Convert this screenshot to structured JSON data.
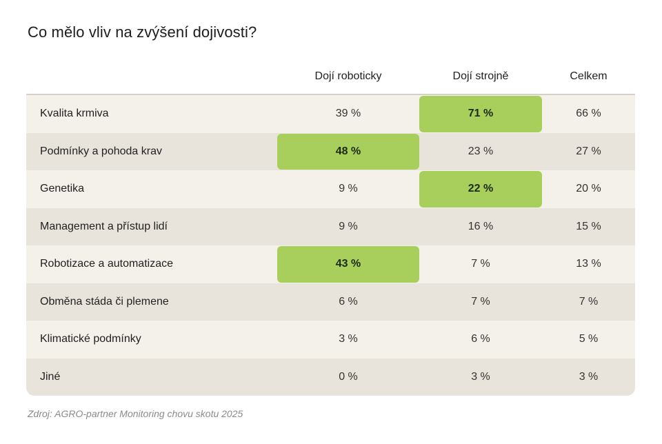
{
  "chart_data": {
    "type": "table",
    "title": "Co mělo vliv na zvýšení dojivosti?",
    "columns": [
      "Dojí roboticky",
      "Dojí strojně",
      "Celkem"
    ],
    "rows": [
      {
        "label": "Kvalita krmiva",
        "values": [
          "39 %",
          "71 %",
          "66 %"
        ],
        "highlight": [
          false,
          true,
          false
        ]
      },
      {
        "label": "Podmínky a pohoda krav",
        "values": [
          "48 %",
          "23 %",
          "27 %"
        ],
        "highlight": [
          true,
          false,
          false
        ]
      },
      {
        "label": "Genetika",
        "values": [
          "9 %",
          "22 %",
          "20 %"
        ],
        "highlight": [
          false,
          true,
          false
        ]
      },
      {
        "label": "Management a přístup lidí",
        "values": [
          "9 %",
          "16 %",
          "15 %"
        ],
        "highlight": [
          false,
          false,
          false
        ]
      },
      {
        "label": "Robotizace a automatizace",
        "values": [
          "43 %",
          "7 %",
          "13 %"
        ],
        "highlight": [
          true,
          false,
          false
        ]
      },
      {
        "label": "Obměna stáda či plemene",
        "values": [
          "6 %",
          "7 %",
          "7 %"
        ],
        "highlight": [
          false,
          false,
          false
        ]
      },
      {
        "label": "Klimatické podmínky",
        "values": [
          "3 %",
          "6 %",
          "5 %"
        ],
        "highlight": [
          false,
          false,
          false
        ]
      },
      {
        "label": "Jiné",
        "values": [
          "0 %",
          "3 %",
          "3 %"
        ],
        "highlight": [
          false,
          false,
          false
        ]
      }
    ],
    "source": "Zdroj: AGRO-partner Monitoring chovu skotu 2025",
    "colors": {
      "highlight": "#a8cf5b",
      "row_light": "#f4f0ea",
      "row_dark": "#e9e4db"
    }
  }
}
